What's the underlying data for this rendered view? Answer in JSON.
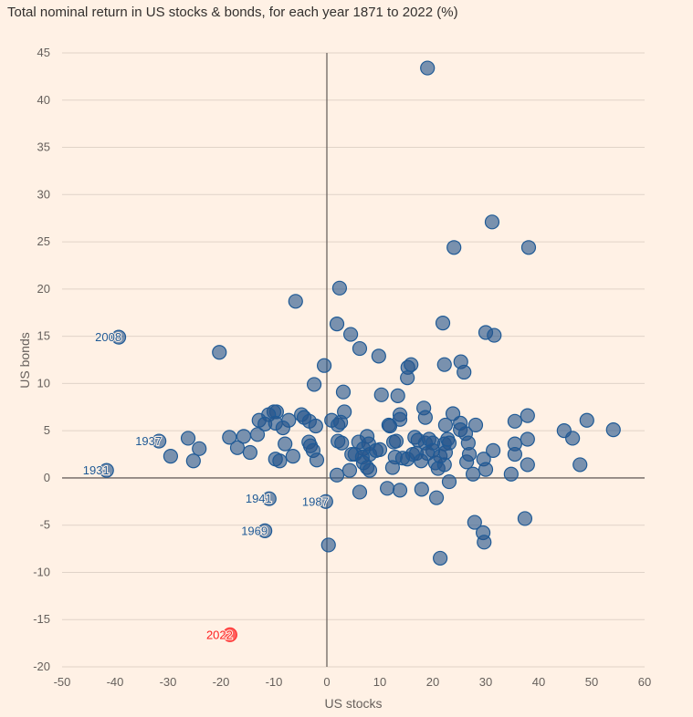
{
  "chart_data": {
    "type": "scatter",
    "title": "Total nominal return in US stocks & bonds, for each year 1871 to 2022 (%)",
    "xlabel": "US stocks",
    "ylabel": "US bonds",
    "xlim": [
      -50,
      60
    ],
    "ylim": [
      -20,
      45
    ],
    "xticks": [
      -50,
      -40,
      -30,
      -20,
      -10,
      0,
      10,
      20,
      30,
      40,
      50,
      60
    ],
    "yticks": [
      -20,
      -15,
      -10,
      -5,
      0,
      5,
      10,
      15,
      20,
      25,
      30,
      35,
      40,
      45
    ],
    "grid": "horizontal",
    "colors": {
      "point": "#1f5a96",
      "highlight": "#ff3030",
      "background": "#fff1e5"
    },
    "points": [
      {
        "x": 19,
        "y": 43.4
      },
      {
        "x": 31.2,
        "y": 27.1
      },
      {
        "x": 24,
        "y": 24.4
      },
      {
        "x": 38.1,
        "y": 24.4
      },
      {
        "x": 2.4,
        "y": 20.1
      },
      {
        "x": -5.9,
        "y": 18.7
      },
      {
        "x": 21.9,
        "y": 16.4
      },
      {
        "x": 1.9,
        "y": 16.3
      },
      {
        "x": -39.3,
        "y": 14.9,
        "label": "2008"
      },
      {
        "x": 4.5,
        "y": 15.2
      },
      {
        "x": 30,
        "y": 15.4
      },
      {
        "x": 31.6,
        "y": 15.1
      },
      {
        "x": -20.3,
        "y": 13.3
      },
      {
        "x": 6.2,
        "y": 13.7
      },
      {
        "x": 9.8,
        "y": 12.9
      },
      {
        "x": 25.3,
        "y": 12.3
      },
      {
        "x": 22.2,
        "y": 12
      },
      {
        "x": 15.3,
        "y": 11.7
      },
      {
        "x": 15.9,
        "y": 12
      },
      {
        "x": -0.5,
        "y": 11.9
      },
      {
        "x": 25.9,
        "y": 11.2
      },
      {
        "x": 15.2,
        "y": 10.6
      },
      {
        "x": -2.4,
        "y": 9.9
      },
      {
        "x": 3.1,
        "y": 9.1
      },
      {
        "x": 10.3,
        "y": 8.8
      },
      {
        "x": 13.4,
        "y": 8.7
      },
      {
        "x": 18.3,
        "y": 7.4
      },
      {
        "x": 3.3,
        "y": 7
      },
      {
        "x": 13.8,
        "y": 6.7
      },
      {
        "x": 18.6,
        "y": 6.4
      },
      {
        "x": 23.8,
        "y": 6.8
      },
      {
        "x": 37.9,
        "y": 6.6
      },
      {
        "x": -4.8,
        "y": 6.7
      },
      {
        "x": -9.5,
        "y": 7
      },
      {
        "x": -10,
        "y": 7
      },
      {
        "x": -11,
        "y": 6.7
      },
      {
        "x": -7.2,
        "y": 6.1
      },
      {
        "x": -12.8,
        "y": 6.1
      },
      {
        "x": -11.7,
        "y": 5.7
      },
      {
        "x": -9.7,
        "y": 5.8
      },
      {
        "x": -4.3,
        "y": 6.4
      },
      {
        "x": -3.3,
        "y": 6
      },
      {
        "x": -2.1,
        "y": 5.5
      },
      {
        "x": 0.9,
        "y": 6.1
      },
      {
        "x": 2.1,
        "y": 5.6
      },
      {
        "x": 2.6,
        "y": 5.9
      },
      {
        "x": 11.7,
        "y": 5.6
      },
      {
        "x": 13.8,
        "y": 6.2
      },
      {
        "x": 22.4,
        "y": 5.6
      },
      {
        "x": 25.2,
        "y": 5.8
      },
      {
        "x": 28.1,
        "y": 5.6
      },
      {
        "x": 35.5,
        "y": 6
      },
      {
        "x": 49.1,
        "y": 6.1
      },
      {
        "x": 54.1,
        "y": 5.1
      },
      {
        "x": 44.8,
        "y": 5
      },
      {
        "x": 46.4,
        "y": 4.2
      },
      {
        "x": 25.2,
        "y": 5.1
      },
      {
        "x": 26.2,
        "y": 4.7
      },
      {
        "x": 7.6,
        "y": 4.4
      },
      {
        "x": -8.3,
        "y": 5.3
      },
      {
        "x": -18.4,
        "y": 4.3
      },
      {
        "x": -15.7,
        "y": 4.4
      },
      {
        "x": -13.1,
        "y": 4.6
      },
      {
        "x": -26.2,
        "y": 4.2
      },
      {
        "x": -24.1,
        "y": 3.1
      },
      {
        "x": -25.2,
        "y": 1.8
      },
      {
        "x": -29.5,
        "y": 2.3
      },
      {
        "x": -31.7,
        "y": 3.9,
        "label": "1937"
      },
      {
        "x": -16.9,
        "y": 3.2
      },
      {
        "x": -14.5,
        "y": 2.7
      },
      {
        "x": -7.9,
        "y": 3.6
      },
      {
        "x": -3.4,
        "y": 3.8
      },
      {
        "x": -3.1,
        "y": 3.4
      },
      {
        "x": -2.6,
        "y": 2.9
      },
      {
        "x": -1.9,
        "y": 1.9
      },
      {
        "x": -6.4,
        "y": 2.3
      },
      {
        "x": -9.7,
        "y": 2
      },
      {
        "x": -8.9,
        "y": 1.8
      },
      {
        "x": 2.1,
        "y": 3.9
      },
      {
        "x": 2.8,
        "y": 3.7
      },
      {
        "x": 4.7,
        "y": 2.5
      },
      {
        "x": 5.3,
        "y": 2.5
      },
      {
        "x": 6,
        "y": 3.8
      },
      {
        "x": 6.9,
        "y": 3.1
      },
      {
        "x": 7.9,
        "y": 3.6
      },
      {
        "x": 8.1,
        "y": 2.5
      },
      {
        "x": 9.3,
        "y": 2.9
      },
      {
        "x": 6.7,
        "y": 2.2
      },
      {
        "x": 6.9,
        "y": 1.6
      },
      {
        "x": 7.6,
        "y": 1.1
      },
      {
        "x": 8.1,
        "y": 0.8
      },
      {
        "x": 4.3,
        "y": 0.8
      },
      {
        "x": 1.9,
        "y": 0.3
      },
      {
        "x": 10,
        "y": 3
      },
      {
        "x": 11.9,
        "y": 5.5
      },
      {
        "x": 12.6,
        "y": 3.8
      },
      {
        "x": 13.1,
        "y": 3.9
      },
      {
        "x": 12.9,
        "y": 2.2
      },
      {
        "x": 14.3,
        "y": 2.1
      },
      {
        "x": 15.2,
        "y": 2
      },
      {
        "x": 12.4,
        "y": 1.1
      },
      {
        "x": 16.2,
        "y": 2.5
      },
      {
        "x": 16.9,
        "y": 2.6
      },
      {
        "x": 16.6,
        "y": 4.3
      },
      {
        "x": 17.2,
        "y": 4
      },
      {
        "x": 18.6,
        "y": 3.7
      },
      {
        "x": 19.3,
        "y": 4.1
      },
      {
        "x": 20,
        "y": 3.7
      },
      {
        "x": 20,
        "y": 2.9
      },
      {
        "x": 19,
        "y": 2.6
      },
      {
        "x": 17.8,
        "y": 1.8
      },
      {
        "x": 20.5,
        "y": 1.6
      },
      {
        "x": 21,
        "y": 1
      },
      {
        "x": 22.2,
        "y": 1.4
      },
      {
        "x": 21.4,
        "y": 2.3
      },
      {
        "x": 22.2,
        "y": 3.6
      },
      {
        "x": 22.8,
        "y": 4.1
      },
      {
        "x": 23.1,
        "y": 3.7
      },
      {
        "x": 22.4,
        "y": 2.7
      },
      {
        "x": 26.7,
        "y": 3.7
      },
      {
        "x": 26.4,
        "y": 1.7
      },
      {
        "x": 26.9,
        "y": 2.5
      },
      {
        "x": 27.6,
        "y": 0.4
      },
      {
        "x": 29.6,
        "y": 2
      },
      {
        "x": 30,
        "y": 0.9
      },
      {
        "x": 31.4,
        "y": 2.9
      },
      {
        "x": 35.5,
        "y": 3.6
      },
      {
        "x": 35.5,
        "y": 2.5
      },
      {
        "x": 37.9,
        "y": 4.1
      },
      {
        "x": 34.8,
        "y": 0.4
      },
      {
        "x": 37.9,
        "y": 1.4
      },
      {
        "x": 47.8,
        "y": 1.4
      },
      {
        "x": -41.6,
        "y": 0.8,
        "label": "1931"
      },
      {
        "x": 11.4,
        "y": -1.1
      },
      {
        "x": 13.8,
        "y": -1.3
      },
      {
        "x": 6.2,
        "y": -1.5
      },
      {
        "x": 17.9,
        "y": -1.2
      },
      {
        "x": 20.7,
        "y": -2.1
      },
      {
        "x": 23.1,
        "y": -0.4
      },
      {
        "x": -10.9,
        "y": -2.2,
        "label": "1941"
      },
      {
        "x": -0.2,
        "y": -2.5,
        "label": "1987"
      },
      {
        "x": -11.7,
        "y": -5.6,
        "label": "1969"
      },
      {
        "x": 27.9,
        "y": -4.7
      },
      {
        "x": 29.5,
        "y": -5.8
      },
      {
        "x": 29.7,
        "y": -6.8
      },
      {
        "x": 37.4,
        "y": -4.3
      },
      {
        "x": 0.3,
        "y": -7.1
      },
      {
        "x": 21.4,
        "y": -8.5
      },
      {
        "x": -18.3,
        "y": -16.6,
        "label": "2022",
        "highlight": true
      }
    ]
  }
}
